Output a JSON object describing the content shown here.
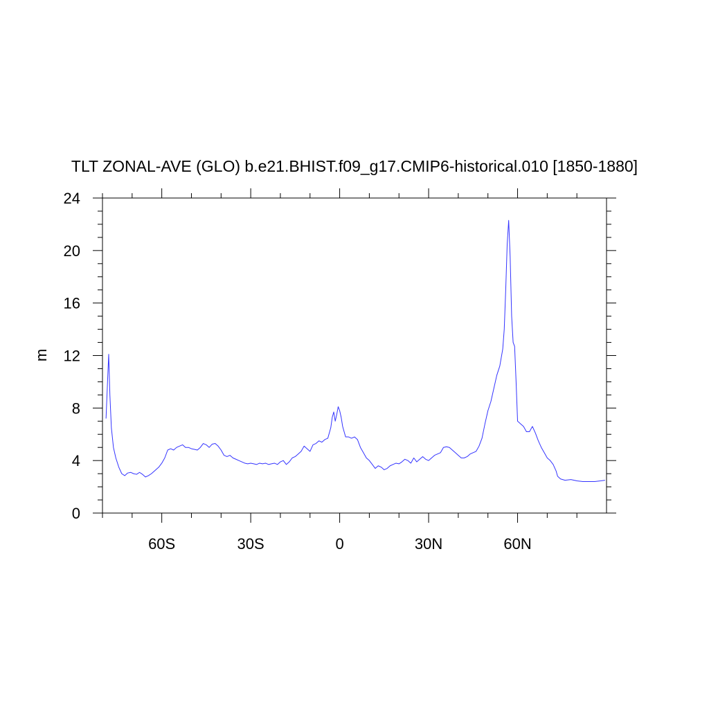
{
  "chart_data": {
    "type": "line",
    "title": "TLT ZONAL-AVE (GLO) b.e21.BHIST.f09_g17.CMIP6-historical.010 [1850-1880]",
    "xlabel": "",
    "ylabel": "m",
    "xlim": [
      -80,
      90
    ],
    "ylim": [
      0,
      24
    ],
    "x_ticks": [
      {
        "value": -60,
        "label": "60S"
      },
      {
        "value": -30,
        "label": "30S"
      },
      {
        "value": 0,
        "label": "0"
      },
      {
        "value": 30,
        "label": "30N"
      },
      {
        "value": 60,
        "label": "60N"
      }
    ],
    "y_ticks": [
      {
        "value": 0,
        "label": "0"
      },
      {
        "value": 4,
        "label": "4"
      },
      {
        "value": 8,
        "label": "8"
      },
      {
        "value": 12,
        "label": "12"
      },
      {
        "value": 16,
        "label": "16"
      },
      {
        "value": 20,
        "label": "20"
      },
      {
        "value": 24,
        "label": "24"
      }
    ],
    "grid": false,
    "series": [
      {
        "color": "#3333ff",
        "points": [
          [
            -78.8,
            7.2
          ],
          [
            -78.2,
            10.5
          ],
          [
            -77.9,
            12.1
          ],
          [
            -77.5,
            9.0
          ],
          [
            -77.0,
            6.5
          ],
          [
            -76.3,
            5.0
          ],
          [
            -75.5,
            4.2
          ],
          [
            -74.5,
            3.5
          ],
          [
            -73.5,
            3.0
          ],
          [
            -72.5,
            2.85
          ],
          [
            -71.5,
            3.05
          ],
          [
            -70.5,
            3.1
          ],
          [
            -69.5,
            3.0
          ],
          [
            -68.5,
            2.95
          ],
          [
            -67.5,
            3.1
          ],
          [
            -66.5,
            2.95
          ],
          [
            -65.5,
            2.75
          ],
          [
            -64.5,
            2.85
          ],
          [
            -63.5,
            3.0
          ],
          [
            -62.5,
            3.2
          ],
          [
            -61.0,
            3.5
          ],
          [
            -60.0,
            3.8
          ],
          [
            -59.0,
            4.2
          ],
          [
            -58.0,
            4.8
          ],
          [
            -57.0,
            4.9
          ],
          [
            -56.0,
            4.8
          ],
          [
            -55.0,
            5.0
          ],
          [
            -54.0,
            5.1
          ],
          [
            -53.0,
            5.2
          ],
          [
            -52.0,
            5.0
          ],
          [
            -51.0,
            5.0
          ],
          [
            -50.0,
            4.9
          ],
          [
            -49.0,
            4.85
          ],
          [
            -48.0,
            4.8
          ],
          [
            -47.0,
            5.0
          ],
          [
            -46.0,
            5.3
          ],
          [
            -45.0,
            5.2
          ],
          [
            -44.0,
            5.0
          ],
          [
            -43.0,
            5.25
          ],
          [
            -42.0,
            5.3
          ],
          [
            -41.0,
            5.1
          ],
          [
            -40.0,
            4.8
          ],
          [
            -39.0,
            4.4
          ],
          [
            -38.0,
            4.3
          ],
          [
            -37.0,
            4.4
          ],
          [
            -36.0,
            4.2
          ],
          [
            -35.0,
            4.1
          ],
          [
            -34.0,
            4.0
          ],
          [
            -33.0,
            3.9
          ],
          [
            -32.0,
            3.8
          ],
          [
            -31.0,
            3.75
          ],
          [
            -30.0,
            3.8
          ],
          [
            -29.0,
            3.75
          ],
          [
            -28.0,
            3.7
          ],
          [
            -27.0,
            3.8
          ],
          [
            -26.0,
            3.75
          ],
          [
            -25.0,
            3.8
          ],
          [
            -24.0,
            3.7
          ],
          [
            -23.0,
            3.75
          ],
          [
            -22.0,
            3.8
          ],
          [
            -21.0,
            3.7
          ],
          [
            -20.0,
            3.9
          ],
          [
            -19.0,
            4.0
          ],
          [
            -18.0,
            3.7
          ],
          [
            -17.0,
            3.9
          ],
          [
            -16.0,
            4.2
          ],
          [
            -15.0,
            4.3
          ],
          [
            -14.0,
            4.5
          ],
          [
            -13.0,
            4.7
          ],
          [
            -12.0,
            5.1
          ],
          [
            -11.0,
            4.9
          ],
          [
            -10.0,
            4.7
          ],
          [
            -9.0,
            5.2
          ],
          [
            -8.0,
            5.3
          ],
          [
            -7.0,
            5.5
          ],
          [
            -6.0,
            5.4
          ],
          [
            -5.0,
            5.6
          ],
          [
            -4.0,
            5.7
          ],
          [
            -3.0,
            6.5
          ],
          [
            -2.5,
            7.3
          ],
          [
            -2.0,
            7.7
          ],
          [
            -1.5,
            7.0
          ],
          [
            -1.0,
            7.5
          ],
          [
            -0.5,
            8.1
          ],
          [
            0.0,
            7.8
          ],
          [
            0.5,
            7.3
          ],
          [
            1.0,
            6.6
          ],
          [
            1.5,
            6.2
          ],
          [
            2.0,
            5.8
          ],
          [
            3.0,
            5.8
          ],
          [
            4.0,
            5.7
          ],
          [
            5.0,
            5.8
          ],
          [
            6.0,
            5.6
          ],
          [
            7.0,
            5.0
          ],
          [
            8.0,
            4.6
          ],
          [
            9.0,
            4.2
          ],
          [
            10.0,
            4.0
          ],
          [
            11.0,
            3.7
          ],
          [
            12.0,
            3.4
          ],
          [
            13.0,
            3.6
          ],
          [
            14.0,
            3.5
          ],
          [
            15.0,
            3.3
          ],
          [
            16.0,
            3.4
          ],
          [
            17.0,
            3.6
          ],
          [
            18.0,
            3.7
          ],
          [
            19.0,
            3.8
          ],
          [
            20.0,
            3.75
          ],
          [
            21.0,
            3.9
          ],
          [
            22.0,
            4.1
          ],
          [
            23.0,
            4.0
          ],
          [
            24.0,
            3.8
          ],
          [
            25.0,
            4.2
          ],
          [
            26.0,
            3.9
          ],
          [
            27.0,
            4.1
          ],
          [
            28.0,
            4.3
          ],
          [
            29.0,
            4.1
          ],
          [
            30.0,
            4.0
          ],
          [
            31.0,
            4.2
          ],
          [
            32.0,
            4.4
          ],
          [
            33.0,
            4.5
          ],
          [
            34.0,
            4.6
          ],
          [
            35.0,
            5.0
          ],
          [
            36.0,
            5.05
          ],
          [
            37.0,
            5.0
          ],
          [
            38.0,
            4.8
          ],
          [
            39.0,
            4.6
          ],
          [
            40.0,
            4.4
          ],
          [
            41.0,
            4.2
          ],
          [
            42.0,
            4.2
          ],
          [
            43.0,
            4.3
          ],
          [
            44.0,
            4.5
          ],
          [
            45.0,
            4.6
          ],
          [
            46.0,
            4.7
          ],
          [
            47.0,
            5.1
          ],
          [
            48.0,
            5.7
          ],
          [
            49.0,
            6.8
          ],
          [
            50.0,
            7.8
          ],
          [
            51.0,
            8.5
          ],
          [
            52.0,
            9.5
          ],
          [
            53.0,
            10.5
          ],
          [
            54.0,
            11.2
          ],
          [
            55.0,
            12.5
          ],
          [
            55.5,
            14.0
          ],
          [
            56.0,
            17.0
          ],
          [
            56.5,
            20.5
          ],
          [
            57.0,
            22.3
          ],
          [
            57.5,
            19.5
          ],
          [
            58.0,
            15.0
          ],
          [
            58.5,
            13.0
          ],
          [
            59.0,
            12.7
          ],
          [
            59.5,
            10.0
          ],
          [
            60.0,
            7.0
          ],
          [
            61.0,
            6.8
          ],
          [
            62.0,
            6.6
          ],
          [
            63.0,
            6.2
          ],
          [
            64.0,
            6.2
          ],
          [
            65.0,
            6.6
          ],
          [
            66.0,
            6.1
          ],
          [
            67.0,
            5.5
          ],
          [
            68.0,
            5.0
          ],
          [
            69.0,
            4.6
          ],
          [
            70.0,
            4.2
          ],
          [
            71.0,
            4.0
          ],
          [
            72.0,
            3.7
          ],
          [
            73.0,
            3.2
          ],
          [
            73.5,
            2.8
          ],
          [
            74.5,
            2.6
          ],
          [
            76.0,
            2.5
          ],
          [
            78.0,
            2.55
          ],
          [
            80.0,
            2.45
          ],
          [
            82.0,
            2.4
          ],
          [
            84.0,
            2.4
          ],
          [
            86.0,
            2.4
          ],
          [
            88.0,
            2.45
          ],
          [
            89.5,
            2.5
          ]
        ]
      }
    ]
  }
}
